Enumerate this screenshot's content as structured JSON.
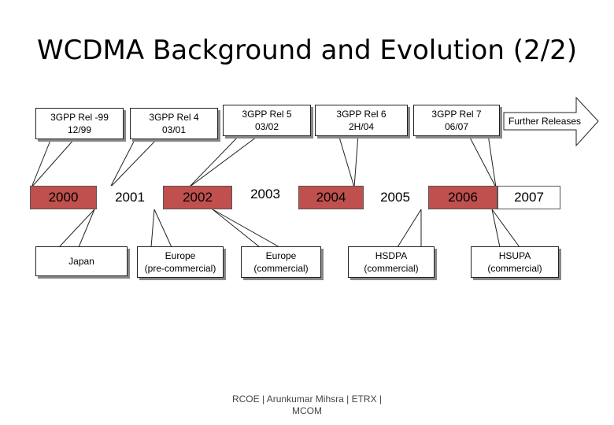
{
  "title": "WCDMA Background and Evolution (2/2)",
  "releases": [
    {
      "line1": "3GPP Rel -99",
      "line2": "12/99"
    },
    {
      "line1": "3GPP Rel 4",
      "line2": "03/01"
    },
    {
      "line1": "3GPP Rel 5",
      "line2": "03/02"
    },
    {
      "line1": "3GPP Rel 6",
      "line2": "2H/04"
    },
    {
      "line1": "3GPP Rel 7",
      "line2": "06/07"
    }
  ],
  "further": "Further Releases",
  "years": [
    "2000",
    "2001",
    "2002",
    "2003",
    "2004",
    "2005",
    "2006",
    "2007"
  ],
  "deployments": [
    {
      "line1": "Japan",
      "line2": ""
    },
    {
      "line1": "Europe",
      "line2": "(pre-commercial)"
    },
    {
      "line1": "Europe",
      "line2": "(commercial)"
    },
    {
      "line1": "HSDPA",
      "line2": "(commercial)"
    },
    {
      "line1": "HSUPA",
      "line2": "(commercial)"
    }
  ],
  "footer": {
    "line1": "RCOE  |  Arunkumar Mihsra  |  ETRX  |",
    "line2": "MCOM"
  },
  "colors": {
    "highlight_year": "#c0504d"
  }
}
